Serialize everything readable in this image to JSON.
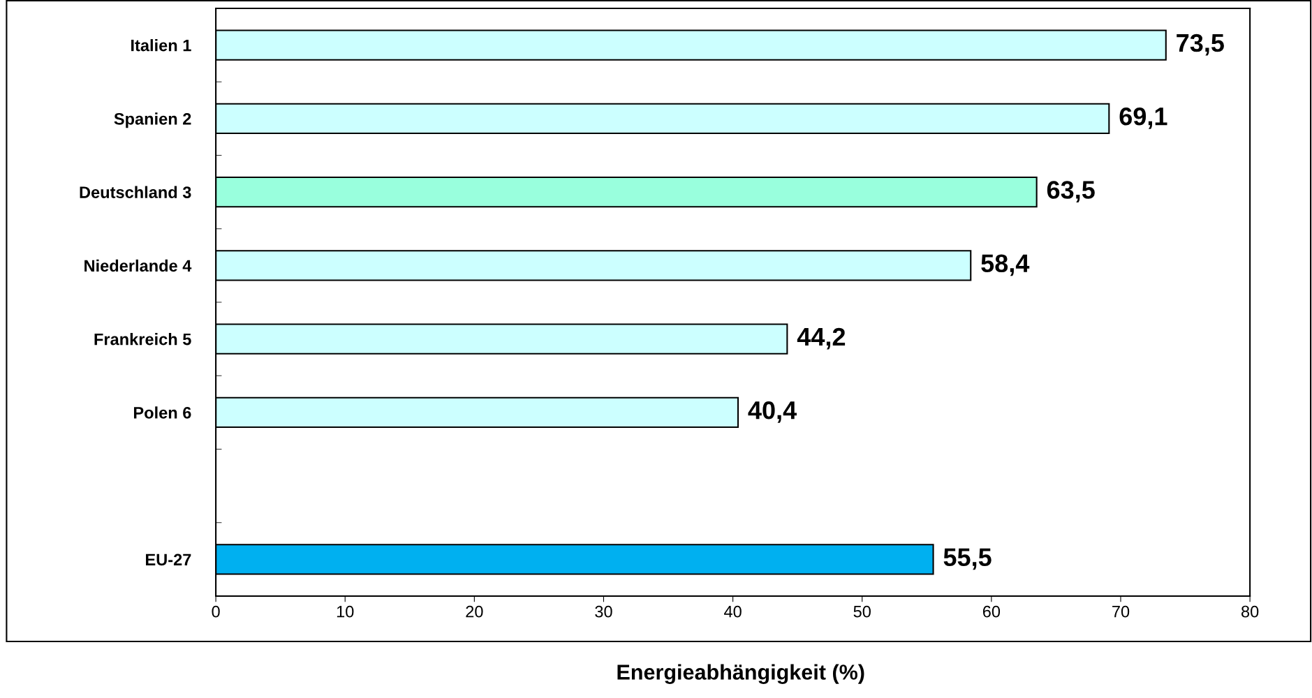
{
  "chart_data": {
    "type": "bar",
    "orientation": "horizontal",
    "xlabel": "Energieabhängigkeit (%)",
    "categories": [
      "Italien 1",
      "Spanien 2",
      "Deutschland 3",
      "Niederlande 4",
      "Frankreich 5",
      "Polen 6",
      null,
      "EU-27"
    ],
    "values": [
      73.5,
      69.1,
      63.5,
      58.4,
      44.2,
      40.4,
      null,
      55.5
    ],
    "value_labels": [
      "73,5",
      "69,1",
      "63,5",
      "58,4",
      "44,2",
      "40,4",
      null,
      "55,5"
    ],
    "colors": [
      "#ccffff",
      "#ccffff",
      "#99ffdd",
      "#ccffff",
      "#ccffff",
      "#ccffff",
      null,
      "#00b0f0"
    ],
    "xlim": [
      0,
      80
    ],
    "xticks": [
      0,
      10,
      20,
      30,
      40,
      50,
      60,
      70,
      80
    ],
    "grid": false,
    "legend": false
  }
}
